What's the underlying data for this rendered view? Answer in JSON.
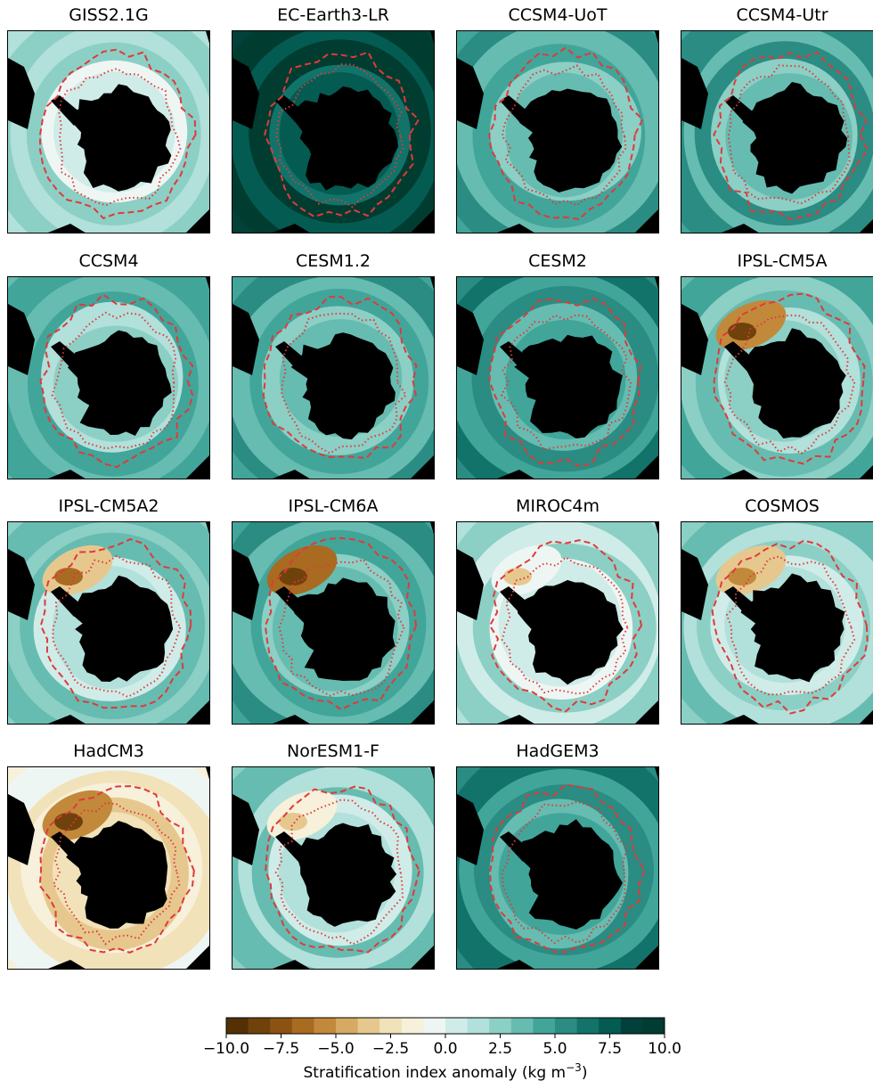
{
  "chart_data": {
    "type": "heatmap",
    "description_kind": "polar-stereographic maps of the Southern Ocean, one per model",
    "panels": [
      {
        "title": "GISS2.1G",
        "tone": 1.8,
        "tint": 0.0
      },
      {
        "title": "EC-Earth3-LR",
        "tone": 8.5,
        "tint": 0.0
      },
      {
        "title": "CCSM4-UoT",
        "tone": 4.0,
        "tint": 0.0
      },
      {
        "title": "CCSM4-Utr",
        "tone": 4.5,
        "tint": 0.0
      },
      {
        "title": "CCSM4",
        "tone": 3.8,
        "tint": 0.0
      },
      {
        "title": "CESM1.2",
        "tone": 4.0,
        "tint": 0.0
      },
      {
        "title": "CESM2",
        "tone": 5.2,
        "tint": 0.0
      },
      {
        "title": "IPSL-CM5A",
        "tone": 3.2,
        "tint": -6.0
      },
      {
        "title": "IPSL-CM5A2",
        "tone": 2.8,
        "tint": -4.0
      },
      {
        "title": "IPSL-CM6A",
        "tone": 4.3,
        "tint": -6.5
      },
      {
        "title": "MIROC4m",
        "tone": 1.5,
        "tint": -1.0
      },
      {
        "title": "COSMOS",
        "tone": 2.0,
        "tint": -3.5
      },
      {
        "title": "HadCM3",
        "tone": -2.0,
        "tint": -6.0
      },
      {
        "title": "NorESM1-F",
        "tone": 2.5,
        "tint": -1.5
      },
      {
        "title": "HadGEM3",
        "tone": 5.3,
        "tint": 0.0
      }
    ],
    "colorbar": {
      "label_prefix": "Stratification index anomaly (kg m",
      "label_exponent": "−3",
      "label_suffix": ")",
      "range": [
        -10,
        10
      ],
      "tick_labels": [
        "−10.0",
        "−7.5",
        "−5.0",
        "−2.5",
        "0.0",
        "2.5",
        "5.0",
        "7.5",
        "10.0"
      ],
      "colors": [
        "#543005",
        "#6f420b",
        "#8c5212",
        "#a96b21",
        "#c2893b",
        "#d6aa63",
        "#e6c88e",
        "#f2e2ba",
        "#f7f0da",
        "#eef6f4",
        "#d0ece8",
        "#b2e0da",
        "#8ccfc5",
        "#66bcb0",
        "#41a59a",
        "#2a8c82",
        "#12736a",
        "#045b52",
        "#01413a",
        "#003c30"
      ]
    },
    "overlays": {
      "dashed_line_color": "#e03a3a",
      "dotted_line_color": "#e03a3a",
      "land_color": "#000000"
    }
  }
}
